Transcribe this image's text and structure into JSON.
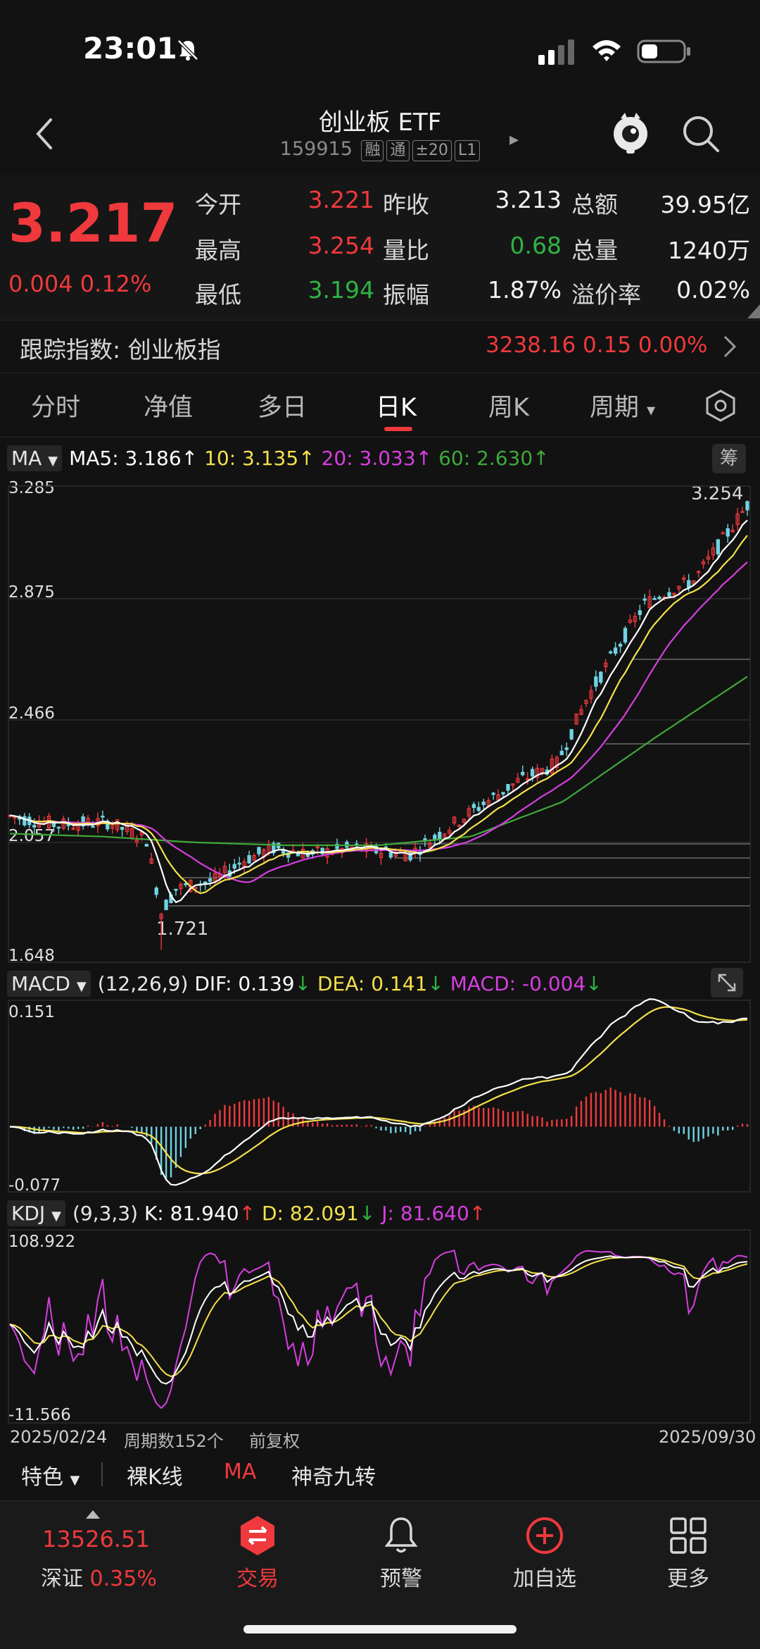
{
  "status_bar": {
    "time": "23:01"
  },
  "header": {
    "title": "创业板 ETF",
    "code": "159915",
    "tags": [
      "融",
      "通",
      "±20",
      "L1"
    ]
  },
  "quote": {
    "price": "3.217",
    "change": "0.004",
    "change_pct": "0.12%",
    "rows": [
      [
        {
          "label": "今开",
          "value": "3.221",
          "color": "red"
        },
        {
          "label": "昨收",
          "value": "3.213",
          "color": "white"
        },
        {
          "label": "总额",
          "value": "39.95亿",
          "color": "white"
        }
      ],
      [
        {
          "label": "最高",
          "value": "3.254",
          "color": "red"
        },
        {
          "label": "量比",
          "value": "0.68",
          "color": "green"
        },
        {
          "label": "总量",
          "value": "1240万",
          "color": "white"
        }
      ],
      [
        {
          "label": "最低",
          "value": "3.194",
          "color": "green"
        },
        {
          "label": "振幅",
          "value": "1.87%",
          "color": "white"
        },
        {
          "label": "溢价率",
          "value": "0.02%",
          "color": "white"
        }
      ]
    ]
  },
  "tracking": {
    "label": "跟踪指数: 创业板指",
    "value": "3238.16  0.15  0.00%"
  },
  "tabs": [
    "分时",
    "净值",
    "多日",
    "日K",
    "周K",
    "周期"
  ],
  "active_tab": "日K",
  "ma": {
    "selector": "MA",
    "ma5": "MA5: 3.186↑",
    "ma10": "10: 3.135↑",
    "ma20": "20: 3.033↑",
    "ma60": "60: 2.630↑",
    "chip_label": "筹"
  },
  "macd": {
    "selector": "MACD",
    "params": "(12,26,9)",
    "dif": "DIF: 0.139",
    "dea": "DEA: 0.141",
    "macd": "MACD: -0.004"
  },
  "kdj": {
    "selector": "KDJ",
    "params": "(9,3,3)",
    "k": "K: 81.940",
    "d": "D: 82.091",
    "j": "J: 81.640"
  },
  "axes": {
    "price_ticks": [
      "3.285",
      "2.875",
      "2.466",
      "2.057",
      "1.648"
    ],
    "price_high_marker": "3.254",
    "price_low_marker": "1.721",
    "macd_ticks": [
      "0.151",
      "-0.077"
    ],
    "kdj_ticks": [
      "108.922",
      "-11.566"
    ]
  },
  "footer_info": {
    "date_start": "2025/02/24",
    "period_count": "周期数152个",
    "adjust": "前复权",
    "date_end": "2025/09/30"
  },
  "tools": [
    "特色",
    "裸K线",
    "MA",
    "神奇九转"
  ],
  "bottom_nav": {
    "index_value": "13526.51",
    "index_label": "深证",
    "index_pct": "0.35%",
    "items": [
      "交易",
      "预警",
      "加自选",
      "更多"
    ]
  },
  "colors": {
    "up": "#f0393c",
    "down": "#2fb344",
    "ma5": "#ffffff",
    "ma10": "#f5e14b",
    "ma20": "#d63fe0",
    "ma60": "#3fa83a",
    "macd_hist_neg": "#6fd3e3"
  },
  "chart_data": {
    "type": "candlestick",
    "x_start": "2025/02/24",
    "x_end": "2025/09/30",
    "periods": 152,
    "ylim": [
      1.648,
      3.285
    ],
    "ma60_approx": [
      2.09,
      2.08,
      2.06,
      2.05,
      2.05,
      2.08,
      2.2,
      2.42,
      2.63
    ],
    "close_approx": [
      2.15,
      2.12,
      2.1,
      1.8,
      1.9,
      2.05,
      2.05,
      2.02,
      2.04,
      2.05,
      2.2,
      2.35,
      2.45,
      2.7,
      2.95,
      3.1,
      3.217
    ]
  }
}
